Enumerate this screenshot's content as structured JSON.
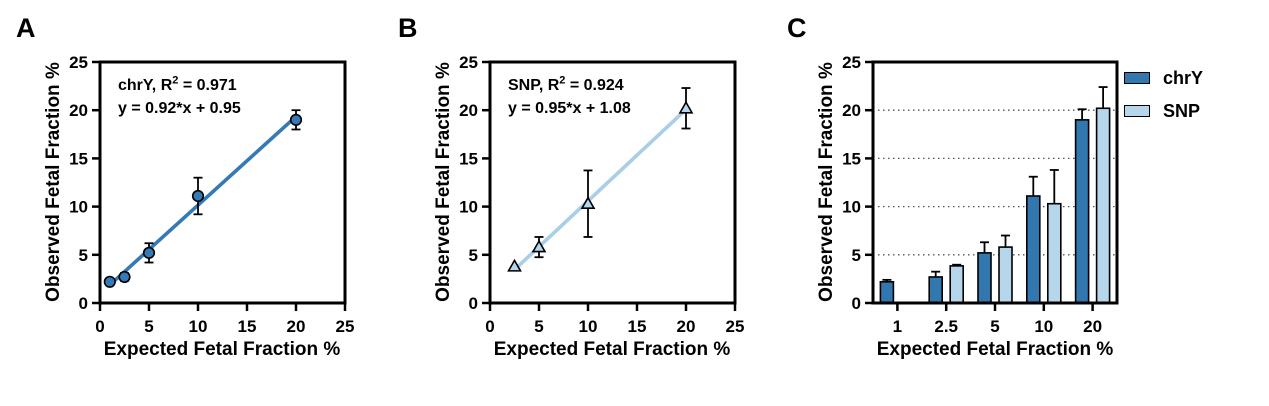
{
  "panels": [
    {
      "letter": "A"
    },
    {
      "letter": "B"
    },
    {
      "letter": "C"
    }
  ],
  "legend": {
    "items": [
      {
        "label": "chrY",
        "color": "#3377AF"
      },
      {
        "label": "SNP",
        "color": "#B6D6EC"
      }
    ]
  },
  "chart_data": [
    {
      "type": "scatter",
      "panel": "A",
      "series_name": "chrY",
      "marker": "circle",
      "marker_color": "#3579B7",
      "line_color": "#3579B7",
      "x": [
        1,
        2.5,
        5,
        10,
        20
      ],
      "y": [
        2.2,
        2.7,
        5.2,
        11.1,
        19.0
      ],
      "yerr": [
        0,
        0.4,
        1.0,
        1.9,
        1.0
      ],
      "fit_line": {
        "x1": 1,
        "y1": 1.87,
        "x2": 20,
        "y2": 19.35
      },
      "ann": {
        "pre": "chrY, R",
        "sup": "2",
        "post": " = 0.971",
        "eq": "y = 0.92*x + 0.95"
      },
      "xlabel": "Expected Fetal Fraction %",
      "ylabel": "Observed Fetal Fraction %",
      "xticks": [
        0,
        5,
        10,
        15,
        20,
        25
      ],
      "yticks": [
        0,
        5,
        10,
        15,
        20,
        25
      ],
      "xlim": [
        0,
        25
      ],
      "ylim": [
        0,
        25
      ]
    },
    {
      "type": "scatter",
      "panel": "B",
      "series_name": "SNP",
      "marker": "triangle",
      "marker_color": "#B6D6EC",
      "line_color": "#A8CEE8",
      "x": [
        2.5,
        5,
        10,
        20
      ],
      "y": [
        3.8,
        5.8,
        10.3,
        20.2
      ],
      "yerr": [
        0,
        1.05,
        3.45,
        2.1
      ],
      "fit_line": {
        "x1": 2.5,
        "y1": 3.46,
        "x2": 20,
        "y2": 20.08
      },
      "ann": {
        "pre": "SNP, R",
        "sup": "2",
        "post": " = 0.924",
        "eq": "y = 0.95*x + 1.08"
      },
      "xlabel": "Expected Fetal Fraction %",
      "ylabel": "Observed Fetal Fraction %",
      "xticks": [
        0,
        5,
        10,
        15,
        20,
        25
      ],
      "yticks": [
        0,
        5,
        10,
        15,
        20,
        25
      ],
      "xlim": [
        0,
        25
      ],
      "ylim": [
        0,
        25
      ]
    },
    {
      "type": "bar",
      "panel": "C",
      "categories": [
        "1",
        "2.5",
        "5",
        "10",
        "20"
      ],
      "series": [
        {
          "name": "chrY",
          "color": "#3377AF",
          "values": [
            2.2,
            2.7,
            5.2,
            11.1,
            19.0
          ],
          "errors": [
            0.2,
            0.55,
            1.1,
            2.0,
            1.1
          ]
        },
        {
          "name": "SNP",
          "color": "#B6D6EC",
          "values": [
            null,
            3.85,
            5.8,
            10.3,
            20.2
          ],
          "errors": [
            null,
            0.12,
            1.2,
            3.5,
            2.2
          ]
        }
      ],
      "xlabel": "Expected Fetal Fraction %",
      "ylabel": "Observed Fetal Fraction %",
      "yticks": [
        0,
        5,
        10,
        15,
        20,
        25
      ],
      "gridlines": [
        5,
        10,
        15,
        20
      ],
      "ylim": [
        0,
        25
      ],
      "legend_position": "right"
    }
  ]
}
